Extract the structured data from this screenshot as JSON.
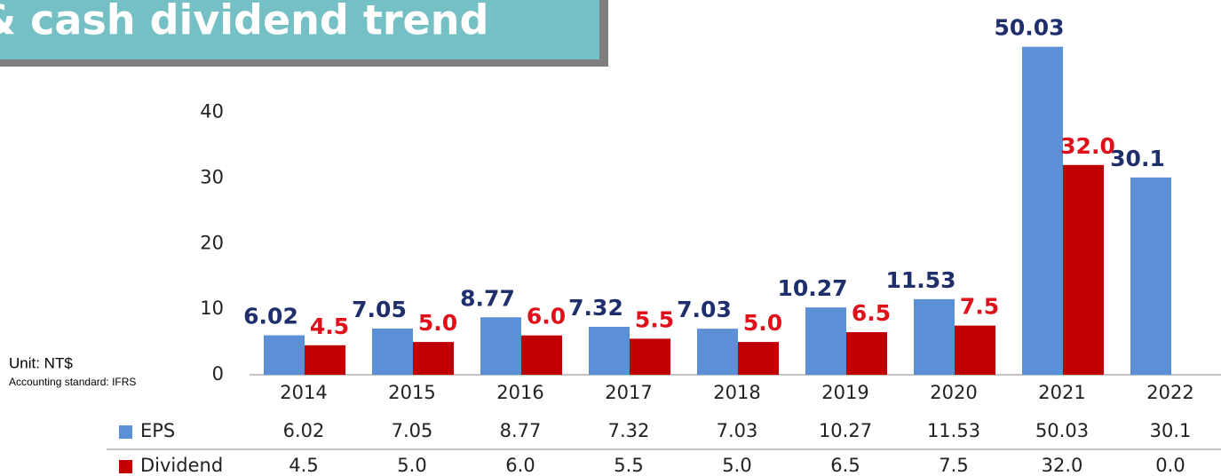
{
  "chart_data": {
    "type": "bar",
    "title": "& cash dividend trend",
    "annotations": [
      "Unit: NT$",
      "Accounting standard: IFRS"
    ],
    "categories": [
      "2014",
      "2015",
      "2016",
      "2017",
      "2018",
      "2019",
      "2020",
      "2021",
      "2022"
    ],
    "series": [
      {
        "name": "EPS",
        "color": "#5b8fd6",
        "label_color": "#1f2f6b",
        "values": [
          6.02,
          7.05,
          8.77,
          7.32,
          7.03,
          10.27,
          11.53,
          50.03,
          30.1
        ]
      },
      {
        "name": "Dividend",
        "color": "#c00000",
        "label_color": "#e0101a",
        "values": [
          4.5,
          5.0,
          6.0,
          5.5,
          5.0,
          6.5,
          7.5,
          32.0,
          0.0
        ],
        "value_labels": [
          "4.5",
          "5.0",
          "6.0",
          "5.5",
          "5.0",
          "6.5",
          "7.5",
          "32.0",
          "0.0"
        ]
      }
    ],
    "ylim": [
      0,
      55
    ],
    "yticks": [
      0,
      10,
      20,
      30,
      40
    ],
    "grid": false
  }
}
